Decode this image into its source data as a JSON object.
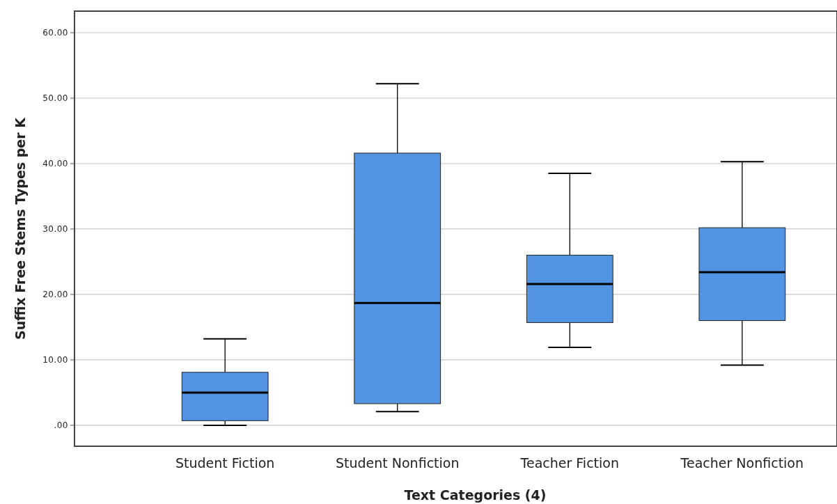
{
  "chart_data": {
    "type": "box",
    "xlabel": "Text Categories (4)",
    "ylabel": "Suffix Free Stems Types per K",
    "categories": [
      "Student Fiction",
      "Student Nonfiction",
      "Teacher Fiction",
      "Teacher Nonfiction"
    ],
    "color": "#5294e2",
    "boxes": [
      {
        "low": 0,
        "q1": 0.7,
        "median": 5.0,
        "q3": 8.1,
        "high": 13.2
      },
      {
        "low": 2.1,
        "q1": 3.3,
        "median": 18.7,
        "q3": 41.6,
        "high": 52.2
      },
      {
        "low": 11.9,
        "q1": 15.7,
        "median": 21.6,
        "q3": 26.0,
        "high": 38.5
      },
      {
        "low": 9.2,
        "q1": 16.0,
        "median": 23.4,
        "q3": 30.2,
        "high": 40.3
      }
    ],
    "ylim": [
      -3.2,
      63.3
    ],
    "yticks": [
      {
        "value": 0,
        "label": ".00"
      },
      {
        "value": 10,
        "label": "10.00"
      },
      {
        "value": 20,
        "label": "20.00"
      },
      {
        "value": 30,
        "label": "30.00"
      },
      {
        "value": 40,
        "label": "40.00"
      },
      {
        "value": 50,
        "label": "50.00"
      },
      {
        "value": 60,
        "label": "60.00"
      }
    ],
    "grid": "y"
  }
}
